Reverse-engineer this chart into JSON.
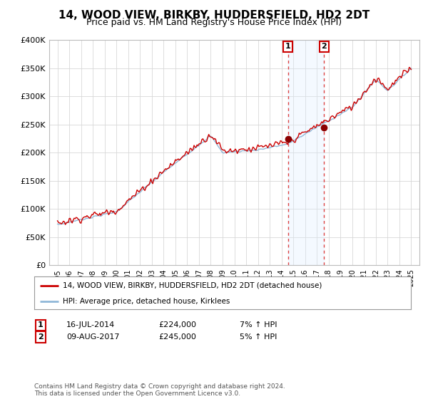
{
  "title": "14, WOOD VIEW, BIRKBY, HUDDERSFIELD, HD2 2DT",
  "subtitle": "Price paid vs. HM Land Registry's House Price Index (HPI)",
  "title_fontsize": 11,
  "subtitle_fontsize": 9,
  "ylim": [
    0,
    400000
  ],
  "yticks": [
    0,
    50000,
    100000,
    150000,
    200000,
    250000,
    300000,
    350000,
    400000
  ],
  "ytick_labels": [
    "£0",
    "£50K",
    "£100K",
    "£150K",
    "£200K",
    "£250K",
    "£300K",
    "£350K",
    "£400K"
  ],
  "line1_color": "#cc0000",
  "line2_color": "#90b8d8",
  "marker_color": "#8b0000",
  "shade_color": "#ddeeff",
  "event1_x": 2014.54,
  "event2_x": 2017.61,
  "event1_y": 224000,
  "event2_y": 245000,
  "event1_label": "16-JUL-2014",
  "event1_price": "£224,000",
  "event1_hpi": "7% ↑ HPI",
  "event2_label": "09-AUG-2017",
  "event2_price": "£245,000",
  "event2_hpi": "5% ↑ HPI",
  "legend_line1": "14, WOOD VIEW, BIRKBY, HUDDERSFIELD, HD2 2DT (detached house)",
  "legend_line2": "HPI: Average price, detached house, Kirklees",
  "footer": "Contains HM Land Registry data © Crown copyright and database right 2024.\nThis data is licensed under the Open Government Licence v3.0.",
  "background_color": "#ffffff",
  "grid_color": "#d8d8d8",
  "xtick_years": [
    1995,
    1996,
    1997,
    1998,
    1999,
    2000,
    2001,
    2002,
    2003,
    2004,
    2005,
    2006,
    2007,
    2008,
    2009,
    2010,
    2011,
    2012,
    2013,
    2014,
    2015,
    2016,
    2017,
    2018,
    2019,
    2020,
    2021,
    2022,
    2023,
    2024,
    2025
  ],
  "xlim": [
    1994.3,
    2025.7
  ]
}
